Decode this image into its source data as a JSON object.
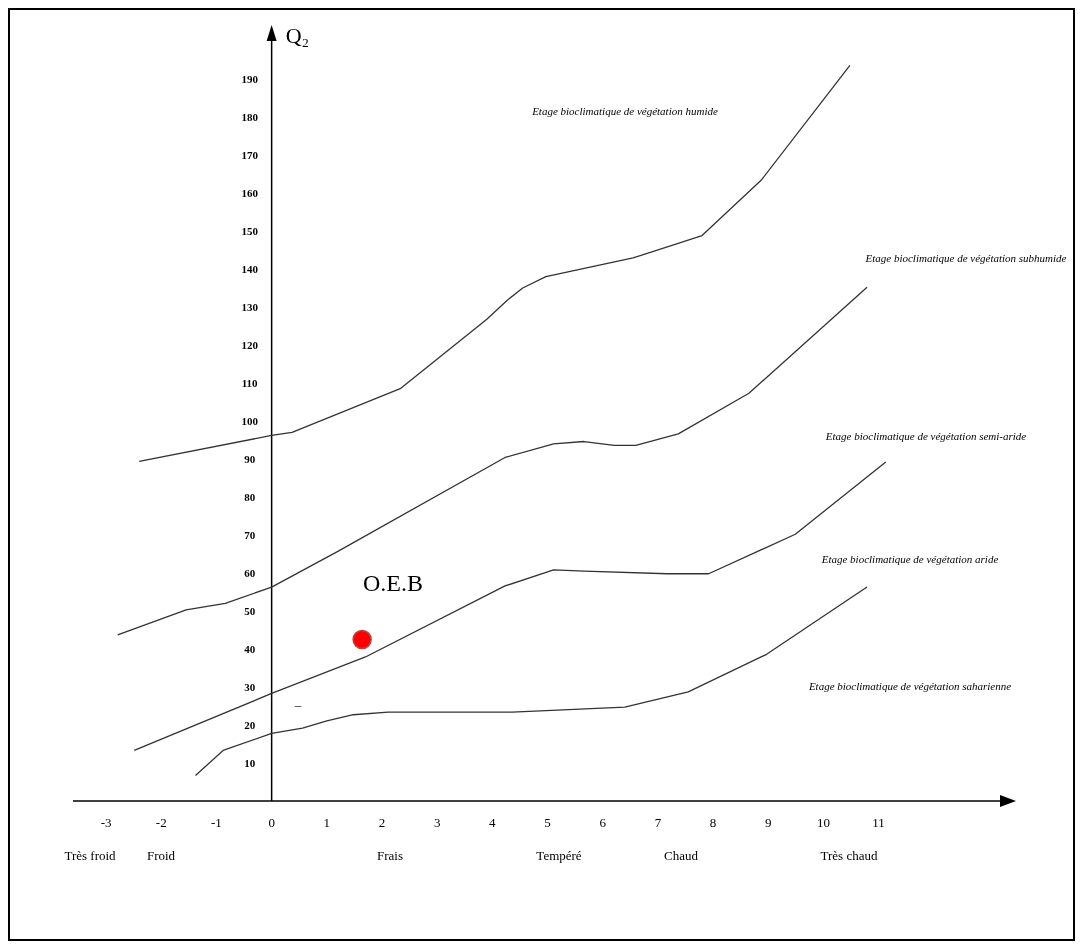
{
  "chart_data": {
    "type": "line",
    "ylabel": "Q₂",
    "xlim": [
      -3.6,
      13.2
    ],
    "ylim": [
      0,
      200
    ],
    "xticks": [
      -3,
      -2,
      -1,
      0,
      1,
      2,
      3,
      4,
      5,
      6,
      7,
      8,
      9,
      10,
      11
    ],
    "yticks": [
      10,
      20,
      30,
      40,
      50,
      60,
      70,
      80,
      90,
      100,
      110,
      120,
      130,
      140,
      150,
      160,
      170,
      180,
      190
    ],
    "grid": false,
    "line_style": "solid",
    "series": [
      {
        "color": "#333333",
        "marker": "none",
        "x": [
          -2.4,
          0,
          0.37,
          2.33,
          3.9,
          4.27,
          4.55,
          4.97,
          6.55,
          7.8,
          8.88,
          10.48
        ],
        "values": [
          89.4,
          96.2,
          97,
          108.5,
          126.8,
          131.8,
          135,
          138,
          142.9,
          148.8,
          163.5,
          193.6
        ]
      },
      {
        "color": "#333333",
        "marker": "none",
        "x": [
          -2.79,
          -1.55,
          -0.84,
          0,
          1.2,
          4.23,
          5.11,
          5.66,
          6.21,
          6.6,
          7.37,
          8.65,
          10.79
        ],
        "values": [
          43.7,
          50.3,
          52,
          56.3,
          65.7,
          90.4,
          94,
          94.6,
          93.6,
          93.6,
          96.6,
          107.3,
          135.2
        ]
      },
      {
        "color": "#333333",
        "marker": "none",
        "x": [
          -2.49,
          0,
          1.7,
          4.23,
          5.11,
          5.66,
          7.17,
          7.92,
          9.49,
          11.13
        ],
        "values": [
          13.3,
          28.3,
          37.9,
          56.6,
          60.8,
          60.5,
          59.8,
          59.8,
          70.2,
          89.2
        ]
      },
      {
        "color": "#333333",
        "marker": "none",
        "x": [
          -1.38,
          -0.88,
          0,
          0.56,
          1,
          1.48,
          2.11,
          4.36,
          6.4,
          7.55,
          8.97,
          10.79
        ],
        "values": [
          6.7,
          13.3,
          17.8,
          19.2,
          21.1,
          22.7,
          23.4,
          23.4,
          24.7,
          28.7,
          38.6,
          56.3
        ]
      },
      {
        "type": "scatter",
        "color": "#ff0000",
        "marker": "circle",
        "x": [
          1.64
        ],
        "values": [
          42.5
        ]
      }
    ],
    "annotations": [
      "Etage bioclimatique de végétation humide",
      "Etage bioclimatique de végétation subhumide",
      "Etage bioclimatique de végétation semi-aride",
      "Etage bioclimatique de végétation aride",
      "Etage bioclimatique de végétation saharienne",
      "O.E.B",
      "–",
      "Très froid",
      "Froid",
      "Frais",
      "Tempéré",
      "Chaud",
      "Très chaud"
    ]
  }
}
